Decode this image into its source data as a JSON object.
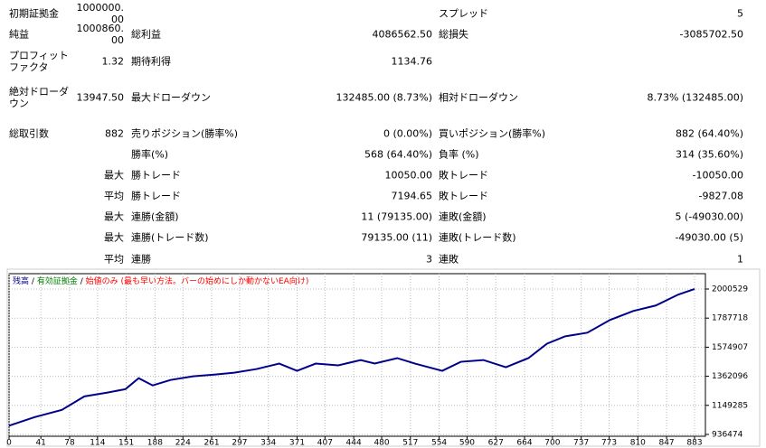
{
  "report": {
    "rows": [
      [
        "初期証拠金",
        "1000000.00",
        null,
        null,
        "スプレッド",
        "5"
      ],
      [
        "純益",
        "1000860.00",
        "総利益",
        "4086562.50",
        "総損失",
        "-3085702.50"
      ],
      [
        "プロフィットファクタ",
        "1.32",
        "期待利得",
        "1134.76",
        null,
        null
      ],
      [
        "絶対ドローダウン",
        "13947.50",
        "最大ドローダウン",
        "132485.00 (8.73%)",
        "相対ドローダウン",
        "8.73% (132485.00)"
      ],
      [
        "総取引数",
        "882",
        "売りポジション(勝率%)",
        "0 (0.00%)",
        "買いポジション(勝率%)",
        "882 (64.40%)"
      ],
      [
        null,
        null,
        "勝率(%)",
        "568 (64.40%)",
        "負率 (%)",
        "314 (35.60%)"
      ],
      [
        null,
        "最大",
        "勝トレード",
        "10050.00",
        "敗トレード",
        "-10050.00"
      ],
      [
        null,
        "平均",
        "勝トレード",
        "7194.65",
        "敗トレード",
        "-9827.08"
      ],
      [
        null,
        "最大",
        "連勝(金額)",
        "11 (79135.00)",
        "連敗(金額)",
        "5 (-49030.00)"
      ],
      [
        null,
        "最大",
        "連勝(トレード数)",
        "79135.00 (11)",
        "連敗(トレード数)",
        "-49030.00 (5)"
      ],
      [
        null,
        "平均",
        "連勝",
        "3",
        "連敗",
        "1"
      ]
    ]
  },
  "chart_data": {
    "type": "line",
    "legend_separator": "/",
    "legend_notes": [
      {
        "text": "有効証拠金",
        "color": "#008000"
      },
      {
        "text": "始値のみ (最も早い方法。バーの始めにしか動かないEA向け)",
        "color": "#ff0000"
      }
    ],
    "x": [
      0,
      33,
      68,
      97,
      126,
      150,
      167,
      185,
      208,
      237,
      266,
      290,
      319,
      348,
      371,
      395,
      424,
      453,
      471,
      500,
      523,
      558,
      582,
      611,
      640,
      669,
      693,
      716,
      745,
      774,
      804,
      833,
      862,
      883
    ],
    "series": [
      {
        "name": "残高",
        "color": "#00008b",
        "values": [
          1000000,
          1063000,
          1116000,
          1215000,
          1242000,
          1268000,
          1348000,
          1295000,
          1335000,
          1362000,
          1375000,
          1388000,
          1415000,
          1455000,
          1402000,
          1455000,
          1442000,
          1481000,
          1455000,
          1495000,
          1455000,
          1402000,
          1468000,
          1481000,
          1428000,
          1495000,
          1601000,
          1654000,
          1681000,
          1774000,
          1840000,
          1880000,
          1960000,
          2000860
        ]
      }
    ],
    "xlim": [
      0,
      897
    ],
    "xticks": [
      0,
      41,
      78,
      114,
      151,
      188,
      224,
      261,
      297,
      334,
      371,
      407,
      444,
      480,
      517,
      554,
      590,
      627,
      664,
      700,
      737,
      773,
      810,
      847,
      883
    ],
    "ylim": [
      923000,
      2113000
    ],
    "yticks": [
      936474,
      1149285,
      1362096,
      1574907,
      1787718,
      2000529
    ],
    "grid": true
  }
}
